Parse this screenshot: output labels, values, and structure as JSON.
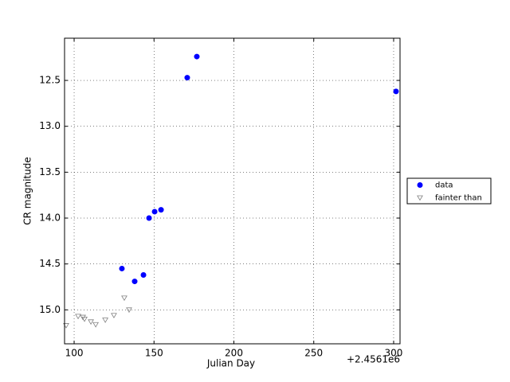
{
  "chart_data": {
    "type": "scatter",
    "x_label": "Julian Day",
    "y_label": "CR magnitude",
    "x_offset_label": "+2.4561e6",
    "xlim": [
      94,
      304
    ],
    "xticks": [
      100,
      150,
      200,
      250,
      300
    ],
    "ylim": [
      15.37,
      12.04
    ],
    "yticks": [
      12.5,
      {
        "value": 13,
        "label": "13.0"
      },
      13.5,
      {
        "value": 14,
        "label": "14.0"
      },
      14.5,
      {
        "value": 15,
        "label": "15.0"
      }
    ],
    "grid": true,
    "legend": "outside right",
    "series": [
      {
        "name": "data",
        "color": "#0000ff",
        "marker": "circle",
        "x": [
          129.9,
          137.9,
          143.4,
          146.9,
          150.4,
          154.4,
          170.8,
          176.8,
          301.5
        ],
        "values": [
          14.55,
          14.69,
          14.62,
          14.0,
          13.93,
          13.91,
          12.47,
          12.24,
          12.62
        ]
      },
      {
        "name": "fainter than",
        "color": "#808080",
        "marker": "triangle-down",
        "x": [
          95.0,
          102.5,
          105.5,
          106.5,
          110.5,
          113.5,
          119.5,
          124.9,
          131.4,
          134.4
        ],
        "values": [
          15.17,
          15.07,
          15.08,
          15.1,
          15.13,
          15.16,
          15.11,
          15.06,
          14.87,
          15.0
        ]
      }
    ]
  }
}
